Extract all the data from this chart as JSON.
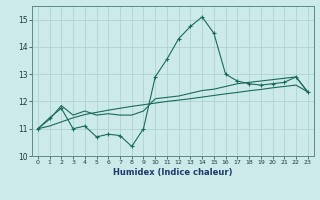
{
  "title": "",
  "xlabel": "Humidex (Indice chaleur)",
  "ylabel": "",
  "bg_color": "#cceaea",
  "grid_color": "#aacccc",
  "line_color": "#1a6a5a",
  "x_values": [
    0,
    1,
    2,
    3,
    4,
    5,
    6,
    7,
    8,
    9,
    10,
    11,
    12,
    13,
    14,
    15,
    16,
    17,
    18,
    19,
    20,
    21,
    22,
    23
  ],
  "line1_y": [
    11.0,
    11.4,
    11.75,
    11.0,
    11.1,
    10.7,
    10.8,
    10.75,
    10.35,
    11.0,
    12.9,
    13.55,
    14.3,
    14.75,
    15.1,
    14.5,
    13.0,
    12.75,
    12.65,
    12.6,
    12.65,
    12.7,
    12.9,
    12.35
  ],
  "line2_y": [
    11.0,
    11.35,
    11.85,
    11.5,
    11.65,
    11.5,
    11.55,
    11.5,
    11.5,
    11.65,
    12.1,
    12.15,
    12.2,
    12.3,
    12.4,
    12.45,
    12.55,
    12.65,
    12.7,
    12.75,
    12.8,
    12.85,
    12.9,
    12.35
  ],
  "line3_y": [
    11.0,
    11.1,
    11.25,
    11.4,
    11.52,
    11.6,
    11.68,
    11.75,
    11.82,
    11.88,
    11.94,
    12.0,
    12.05,
    12.1,
    12.16,
    12.22,
    12.28,
    12.33,
    12.39,
    12.44,
    12.5,
    12.55,
    12.6,
    12.35
  ],
  "ylim": [
    10,
    15.5
  ],
  "yticks": [
    10,
    11,
    12,
    13,
    14,
    15
  ],
  "xlim": [
    -0.5,
    23.5
  ]
}
